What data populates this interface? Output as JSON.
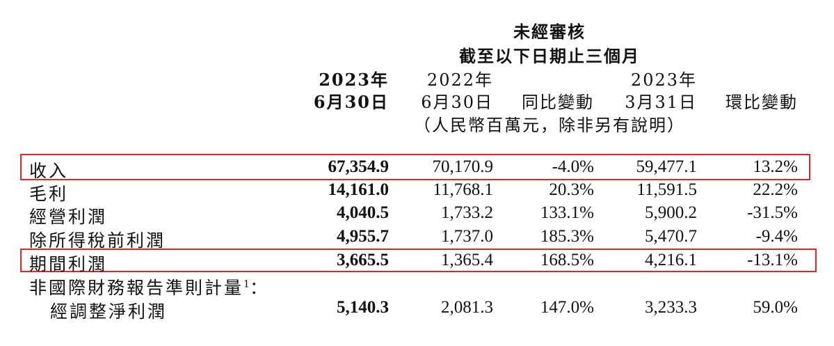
{
  "header": {
    "unaudited": "未經審核",
    "period": "截至以下日期止三個月",
    "col1_year": "2023年",
    "col1_date": "6月30日",
    "col2_year": "2022年",
    "col2_date": "6月30日",
    "col3": "同比變動",
    "col4_year": "2023年",
    "col4_date": "3月31日",
    "col5": "環比變動",
    "unit_note": "（人民幣百萬元，除非另有說明）"
  },
  "rows": [
    {
      "label": "收入",
      "c1": "67,354.9",
      "c2": "70,170.9",
      "c3": "-4.0%",
      "c4": "59,477.1",
      "c5": "13.2%"
    },
    {
      "label": "毛利",
      "c1": "14,161.0",
      "c2": "11,768.1",
      "c3": "20.3%",
      "c4": "11,591.5",
      "c5": "22.2%"
    },
    {
      "label": "經營利潤",
      "c1": "4,040.5",
      "c2": "1,733.2",
      "c3": "133.1%",
      "c4": "5,900.2",
      "c5": "-31.5%"
    },
    {
      "label": "除所得稅前利潤",
      "c1": "4,955.7",
      "c2": "1,737.0",
      "c3": "185.3%",
      "c4": "5,470.7",
      "c5": "-9.4%"
    },
    {
      "label": "期間利潤",
      "c1": "3,665.5",
      "c2": "1,365.4",
      "c3": "168.5%",
      "c4": "4,216.1",
      "c5": "-13.1%"
    }
  ],
  "non_ifrs": {
    "label": "非國際財務報告準則計量",
    "footnote": "1",
    "colon": "：",
    "sub_label": "經調整淨利潤",
    "c1": "5,140.3",
    "c2": "2,081.3",
    "c3": "147.0%",
    "c4": "3,233.3",
    "c5": "59.0%"
  },
  "highlight_color": "#e8202a"
}
